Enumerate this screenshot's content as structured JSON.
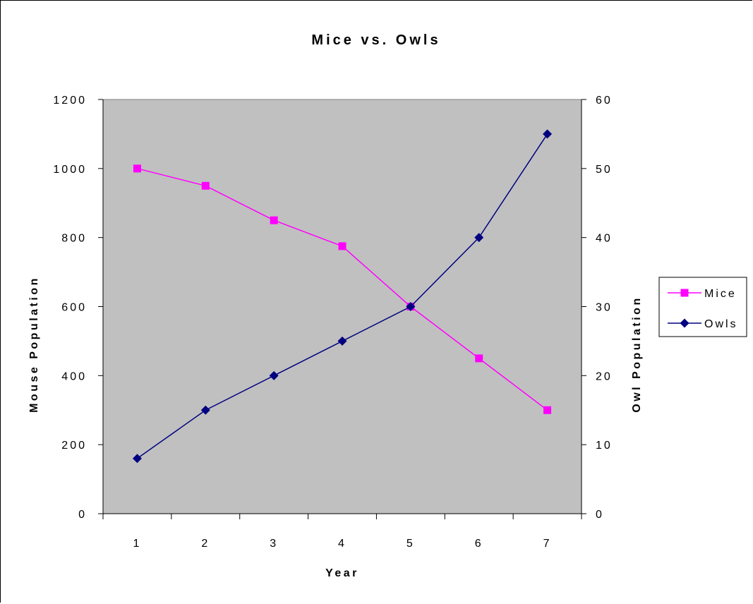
{
  "chart_data": {
    "type": "line",
    "title": "Mice vs. Owls",
    "xlabel": "Year",
    "ylabel_left": "Mouse Population",
    "ylabel_right": "Owl Population",
    "categories": [
      "1",
      "2",
      "3",
      "4",
      "5",
      "6",
      "7"
    ],
    "y_left_ticks": [
      "0",
      "200",
      "400",
      "600",
      "800",
      "1000",
      "1200"
    ],
    "y_right_ticks": [
      "0",
      "10",
      "20",
      "30",
      "40",
      "50",
      "60"
    ],
    "ylim_left": [
      0,
      1200
    ],
    "ylim_right": [
      0,
      60
    ],
    "plot_background": "#c0c0c0",
    "grid": false,
    "legend_position": "right",
    "series": [
      {
        "name": "Mice",
        "axis": "left",
        "values": [
          1000,
          950,
          850,
          775,
          600,
          450,
          300
        ],
        "color": "#ff00ff",
        "marker": "square"
      },
      {
        "name": "Owls",
        "axis": "right",
        "values": [
          8,
          15,
          20,
          25,
          30,
          40,
          55
        ],
        "color": "#000080",
        "marker": "diamond"
      }
    ]
  }
}
